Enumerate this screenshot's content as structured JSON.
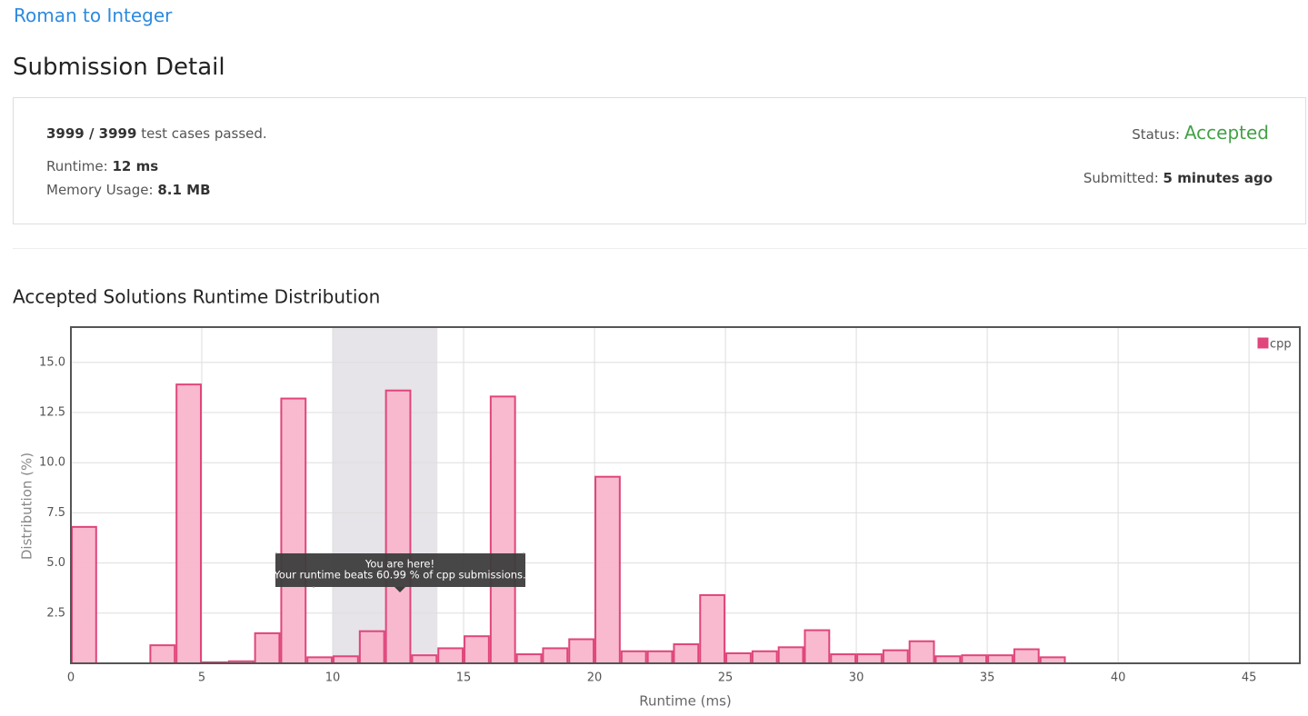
{
  "page": {
    "problem_title": "Roman to Integer",
    "heading": "Submission Detail",
    "tests_passed": "3999 / 3999",
    "tests_text": "test cases passed.",
    "runtime_label": "Runtime:",
    "runtime": "12 ms",
    "memory_label": "Memory Usage:",
    "memory": "8.1 MB",
    "status_label": "Status:",
    "status": "Accepted",
    "submitted_label": "Submitted:",
    "submitted": "5 minutes ago"
  },
  "chart_data": {
    "type": "histogram",
    "title": "Accepted Solutions Runtime Distribution",
    "xlabel": "Runtime (ms)",
    "ylabel": "Distribution (%)",
    "bins": [
      0,
      1,
      2,
      3,
      4,
      5,
      6,
      7,
      8,
      9,
      10,
      11,
      12,
      13,
      14,
      15,
      16,
      17,
      18,
      19,
      20,
      21,
      22,
      23,
      24,
      25,
      26,
      27,
      28,
      29,
      30,
      31,
      32,
      33,
      34,
      35,
      36,
      37,
      38
    ],
    "series": [
      {
        "name": "cpp",
        "color": "#e0457b",
        "fill": "#f9b6cc",
        "values": [
          6.8,
          0,
          0,
          0.9,
          13.9,
          0.05,
          0.1,
          1.5,
          13.2,
          0.3,
          0.35,
          1.6,
          13.6,
          0.4,
          0.75,
          1.35,
          13.3,
          0.45,
          0.75,
          1.2,
          9.3,
          0.6,
          0.6,
          0.95,
          3.4,
          0.5,
          0.6,
          0.8,
          1.65,
          0.45,
          0.45,
          0.65,
          1.1,
          0.35,
          0.4,
          0.4,
          0.7,
          0.3
        ]
      }
    ],
    "highlight": [
      10,
      14
    ],
    "tooltip": [
      "You are here!",
      "Your runtime beats 60.99 % of cpp submissions."
    ],
    "xlim": [
      0,
      46.94
    ],
    "ylim": [
      0,
      16.76
    ],
    "xticks": [
      0,
      5,
      10,
      15,
      20,
      25,
      30,
      35,
      40,
      45
    ],
    "yticks": [
      2.5,
      {
        "value": 5,
        "label": "5.0"
      },
      7.5,
      {
        "value": 10,
        "label": "10.0"
      },
      12.5,
      {
        "value": 15,
        "label": "15.0"
      }
    ],
    "grid": true,
    "legend": "top-right"
  }
}
